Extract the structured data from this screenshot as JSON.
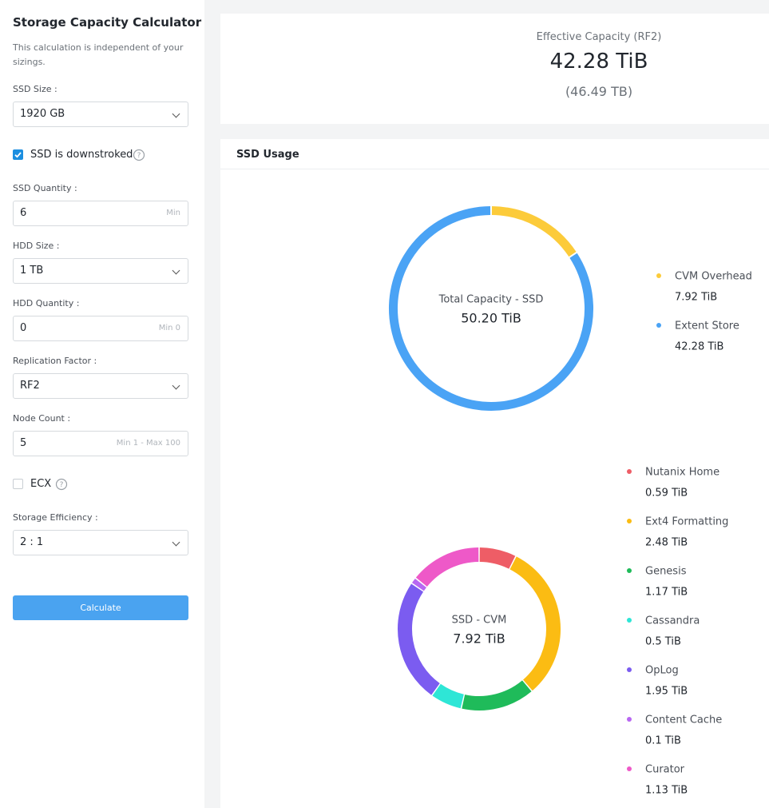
{
  "sidebar": {
    "title": "Storage Capacity Calculator",
    "description": "This calculation is independent of your sizings.",
    "ssd_size": {
      "label": "SSD Size :",
      "value": "1920 GB"
    },
    "ssd_downstroked": {
      "label": "SSD is downstroked",
      "checked": true
    },
    "ssd_quantity": {
      "label": "SSD Quantity :",
      "value": "6",
      "hint": "Min"
    },
    "hdd_size": {
      "label": "HDD Size :",
      "value": "1 TB"
    },
    "hdd_quantity": {
      "label": "HDD Quantity :",
      "value": "0",
      "hint": "Min 0"
    },
    "replication_factor": {
      "label": "Replication Factor :",
      "value": "RF2"
    },
    "node_count": {
      "label": "Node Count :",
      "value": "5",
      "hint": "Min 1 - Max 100"
    },
    "ecx": {
      "label": "ECX",
      "checked": false
    },
    "storage_efficiency": {
      "label": "Storage Efficiency :",
      "value": "2 : 1"
    },
    "button": "Calculate"
  },
  "summary": {
    "title": "Effective Capacity (RF2)",
    "value": "42.28 TiB",
    "secondary": "(46.49 TB)"
  },
  "panel": {
    "title": "SSD Usage"
  },
  "chart_data": [
    {
      "type": "donut",
      "center_title": "Total Capacity - SSD",
      "center_value": "50.20 TiB",
      "categories": [
        "CVM Overhead",
        "Extent Store"
      ],
      "values": [
        7.92,
        42.28
      ],
      "value_labels": [
        "7.92 TiB",
        "42.28 TiB"
      ],
      "colors": [
        "#fccb3a",
        "#4aa3f5"
      ]
    },
    {
      "type": "donut",
      "center_title": "SSD - CVM",
      "center_value": "7.92 TiB",
      "categories": [
        "Nutanix Home",
        "Ext4 Formatting",
        "Genesis",
        "Cassandra",
        "OpLog",
        "Content Cache",
        "Curator"
      ],
      "values": [
        0.59,
        2.48,
        1.17,
        0.5,
        1.95,
        0.1,
        1.13
      ],
      "value_labels": [
        "0.59 TiB",
        "2.48 TiB",
        "1.17 TiB",
        "0.5 TiB",
        "1.95 TiB",
        "0.1 TiB",
        "1.13 TiB"
      ],
      "colors": [
        "#ee5d66",
        "#fbbc13",
        "#1fbb5a",
        "#2ee6d6",
        "#7b5cf0",
        "#b867f2",
        "#ee59c8"
      ]
    }
  ]
}
